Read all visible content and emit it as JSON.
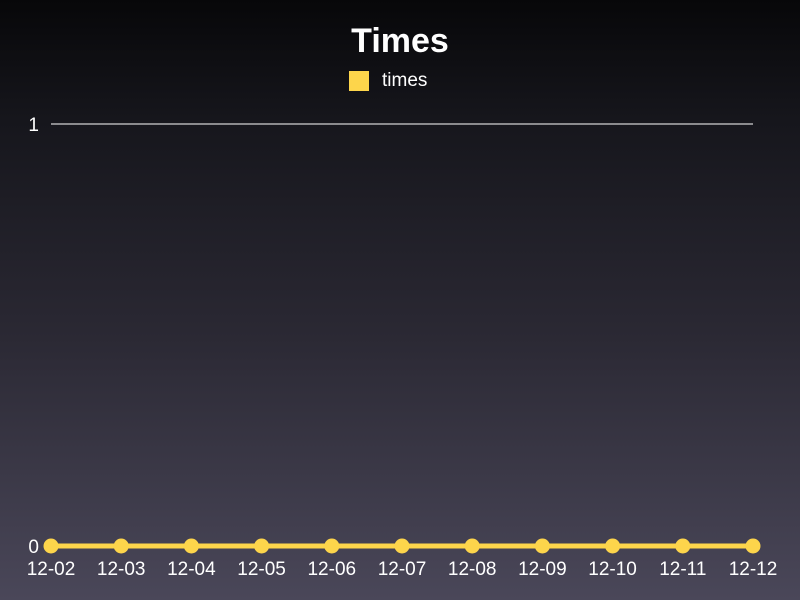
{
  "chart_data": {
    "type": "line",
    "title": "Times",
    "xlabel": "",
    "ylabel": "",
    "categories": [
      "12-02",
      "12-03",
      "12-04",
      "12-05",
      "12-06",
      "12-07",
      "12-08",
      "12-09",
      "12-10",
      "12-11",
      "12-12"
    ],
    "series": [
      {
        "name": "times",
        "values": [
          0,
          0,
          0,
          0,
          0,
          0,
          0,
          0,
          0,
          0,
          0
        ],
        "color": "#fdd54b"
      }
    ],
    "y_ticks": [
      "0",
      "1"
    ],
    "ylim": [
      0,
      1
    ],
    "grid": true,
    "legend_position": "top-center"
  }
}
